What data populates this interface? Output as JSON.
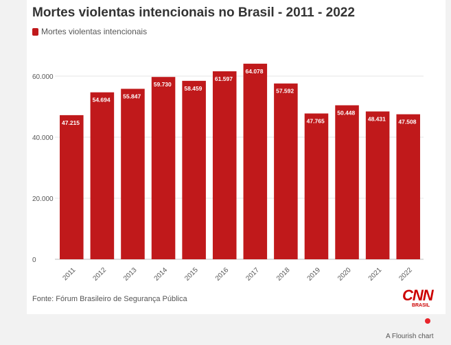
{
  "page": {
    "source": "Fonte: Fórum Brasileiro de Segurança Pública",
    "logo_text": "CNN",
    "logo_sub": "BRASIL",
    "flourish_label": "A Flourish chart",
    "accent_color": "#c0191b"
  },
  "chart_data": {
    "type": "bar",
    "title": "Mortes violentas intencionais no Brasil - 2011 - 2022",
    "xlabel": "",
    "ylabel": "",
    "legend": {
      "position": "top-left",
      "entries": [
        "Mortes violentas intencionais"
      ]
    },
    "categories": [
      "2011",
      "2012",
      "2013",
      "2014",
      "2015",
      "2016",
      "2017",
      "2018",
      "2019",
      "2020",
      "2021",
      "2022"
    ],
    "series": [
      {
        "name": "Mortes violentas intencionais",
        "color": "#c0191b",
        "values": [
          47215,
          54694,
          55847,
          59730,
          58459,
          61597,
          64078,
          57592,
          47765,
          50448,
          48431,
          47508
        ],
        "data_labels": [
          "47.215",
          "54.694",
          "55.847",
          "59.730",
          "58.459",
          "61.597",
          "64.078",
          "57.592",
          "47.765",
          "50.448",
          "48.431",
          "47.508"
        ]
      }
    ],
    "ylim": [
      0,
      66000
    ],
    "yticks": [
      0,
      20000,
      40000,
      60000
    ],
    "ytick_labels": [
      "0",
      "20.000",
      "40.000",
      "60.000"
    ],
    "grid": true
  }
}
